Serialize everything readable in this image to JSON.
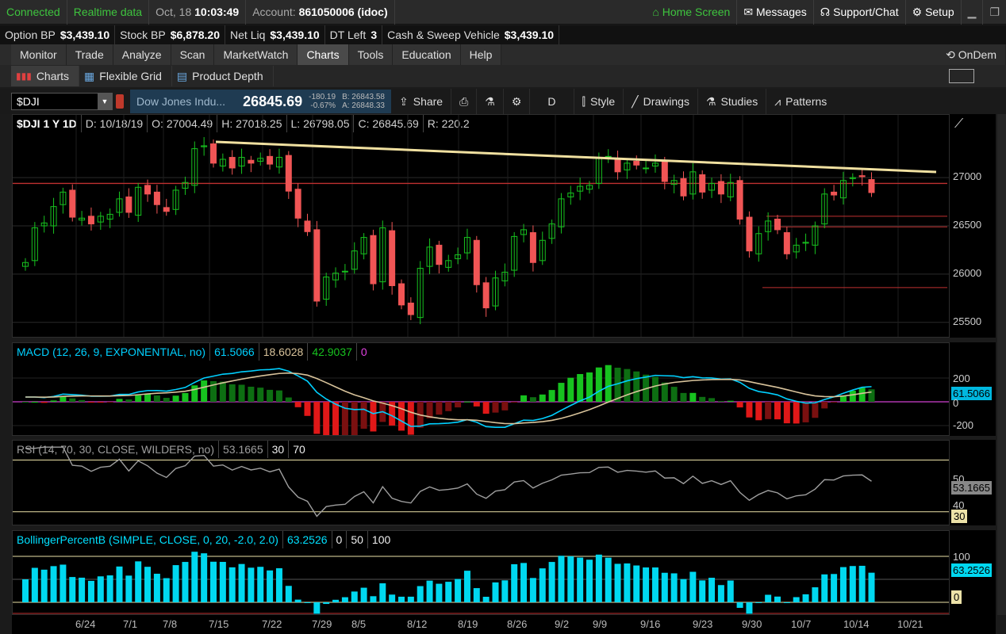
{
  "topbar": {
    "connected": "Connected",
    "realtime": "Realtime data",
    "date": "Oct, 18",
    "time": "10:03:49",
    "account_label": "Account:",
    "account_value": "861050006 (idoc)",
    "home": "Home Screen",
    "messages": "Messages",
    "support": "Support/Chat",
    "setup": "Setup"
  },
  "account": [
    {
      "label": "Option BP",
      "value": "$3,439.10"
    },
    {
      "label": "Stock BP",
      "value": "$6,878.20"
    },
    {
      "label": "Net Liq",
      "value": "$3,439.10"
    },
    {
      "label": "DT Left",
      "value": "3"
    },
    {
      "label": "Cash & Sweep Vehicle",
      "value": "$3,439.10"
    }
  ],
  "tabs": [
    "Monitor",
    "Trade",
    "Analyze",
    "Scan",
    "MarketWatch",
    "Charts",
    "Tools",
    "Education",
    "Help"
  ],
  "tabs_right": "OnDem",
  "subtabs": [
    "Charts",
    "Flexible Grid",
    "Product Depth"
  ],
  "toolbar": {
    "symbol": "$DJI",
    "name": "Dow Jones Indu...",
    "price": "26845.69",
    "chg": "-180.19",
    "chg_pct": "-0.67%",
    "bid": "B: 26843.58",
    "ask": "A: 26848.33",
    "share": "Share",
    "period": "D",
    "style": "Style",
    "drawings": "Drawings",
    "studies": "Studies",
    "patterns": "Patterns"
  },
  "price_header": {
    "sym": "$DJI 1 Y 1D",
    "d": "D: 10/18/19",
    "o": "O: 27004.49",
    "h": "H: 27018.25",
    "l": "L: 26798.05",
    "c": "C: 26845.69",
    "r": "R: 220.2"
  },
  "price_axis": [
    "27000",
    "26500",
    "26000",
    "25500"
  ],
  "macd": {
    "label": "MACD (12, 26, 9, EXPONENTIAL, no)",
    "v1": "61.5066",
    "v2": "18.6028",
    "v3": "42.9037",
    "v4": "0",
    "axis": [
      "200",
      "0",
      "-200"
    ],
    "tag": "61.5066"
  },
  "rsi": {
    "label": "RSI (14, 70, 30, CLOSE, WILDERS, no)",
    "v1": "53.1665",
    "v2": "30",
    "v3": "70",
    "axis": [
      "50",
      "40"
    ],
    "tag": "53.1665",
    "tag2": "30"
  },
  "bb": {
    "label": "BollingerPercentB (SIMPLE, CLOSE, 0, 20, -2.0, 2.0)",
    "v1": "63.2526",
    "v2": "0",
    "v3": "50",
    "v4": "100",
    "axis": [
      "100"
    ],
    "tag": "63.2526",
    "tag2": "0"
  },
  "xaxis": [
    "6/24",
    "7/1",
    "7/8",
    "7/15",
    "7/22",
    "7/29",
    "8/5",
    "8/12",
    "8/19",
    "8/26",
    "9/2",
    "9/9",
    "9/16",
    "9/23",
    "9/30",
    "10/7",
    "10/14",
    "10/21"
  ],
  "chart_data": {
    "type": "candlestick",
    "close": [
      26120,
      26480,
      26530,
      26700,
      26850,
      26590,
      26580,
      26520,
      26600,
      26620,
      26780,
      26640,
      26900,
      26830,
      26720,
      26650,
      26870,
      26950,
      27300,
      27330,
      27150,
      27190,
      27100,
      27210,
      27150,
      27200,
      27140,
      27210,
      26860,
      26580,
      26440,
      25720,
      25970,
      26010,
      26030,
      26240,
      26380,
      25900,
      26480,
      25880,
      25680,
      25580,
      26060,
      26280,
      26100,
      26140,
      26200,
      26380,
      25890,
      25650,
      25960,
      26020,
      26390,
      26460,
      26120,
      26350,
      26520,
      26780,
      26840,
      26910,
      26920,
      27200,
      27220,
      27060,
      27150,
      27130,
      27100,
      27150,
      26960,
      26970,
      26810,
      27060,
      26850,
      26940,
      26830,
      26950,
      26570,
      26240,
      26420,
      26550,
      26460,
      26210,
      26300,
      26330,
      26500,
      26830,
      26820,
      26970,
      27000,
      27010,
      26845
    ],
    "ylim": [
      25350,
      27650
    ]
  },
  "colors": {
    "up": "#17c21f",
    "down": "#f05555",
    "trend": "#f0e0a0",
    "macd": "#00d0ff",
    "signal": "#d8c39b",
    "rsi": "#9e9e9e"
  }
}
